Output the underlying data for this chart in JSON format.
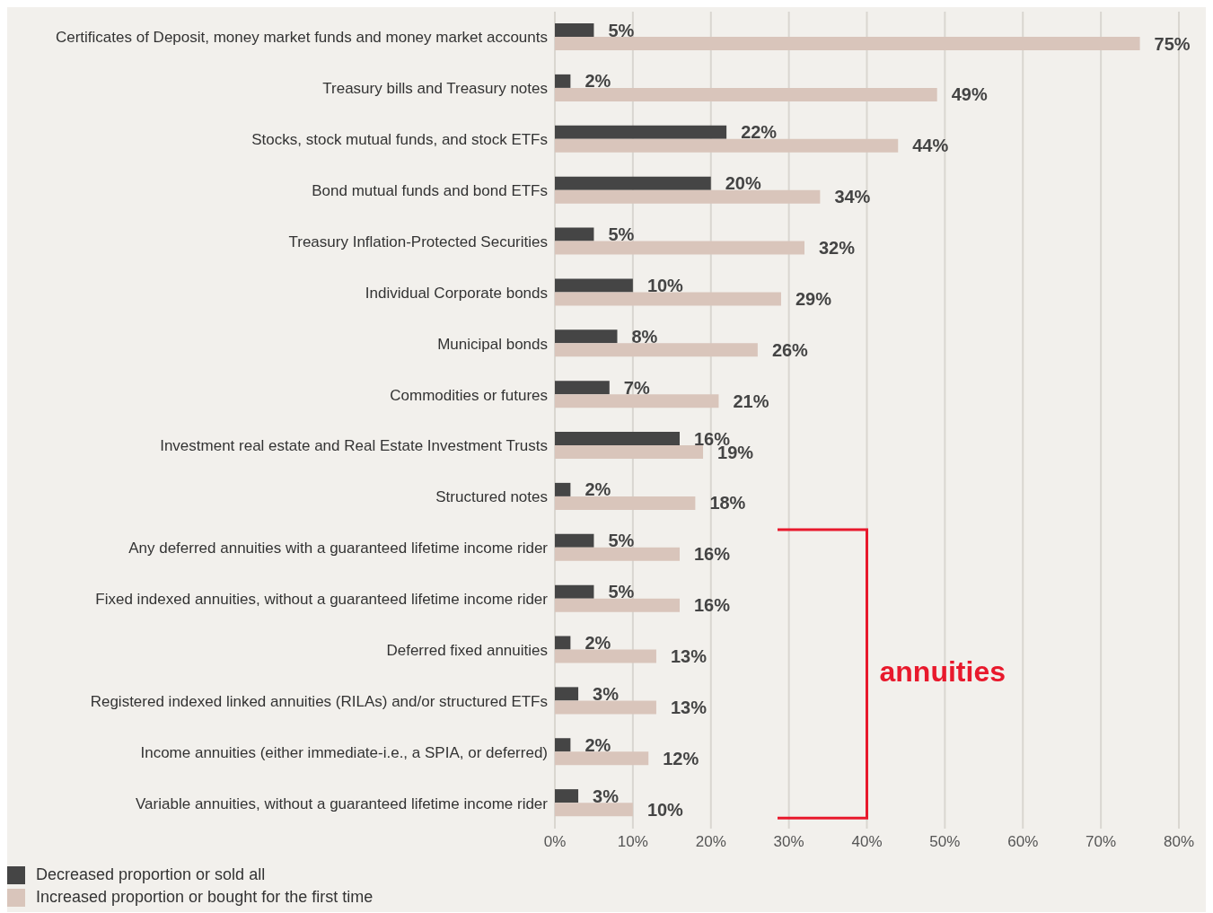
{
  "chart_data": {
    "type": "bar",
    "orientation": "horizontal",
    "categories": [
      "Certificates of Deposit, money market funds and money market accounts",
      "Treasury bills and Treasury notes",
      "Stocks, stock mutual funds, and stock ETFs",
      "Bond mutual funds and bond ETFs",
      "Treasury Inflation-Protected Securities",
      "Individual Corporate bonds",
      "Municipal bonds",
      "Commodities or futures",
      "Investment real estate and Real Estate Investment Trusts",
      "Structured notes",
      "Any deferred annuities with a guaranteed lifetime income rider",
      "Fixed indexed annuities, without a guaranteed lifetime income rider",
      "Deferred fixed annuities",
      "Registered indexed linked annuities (RILAs) and/or structured ETFs",
      "Income annuities (either immediate-i.e., a SPIA, or deferred)",
      "Variable annuities, without a guaranteed lifetime income rider"
    ],
    "series": [
      {
        "name": "Decreased proportion or sold all",
        "color": "#454545",
        "values": [
          5,
          2,
          22,
          20,
          5,
          10,
          8,
          7,
          16,
          2,
          5,
          5,
          2,
          3,
          2,
          3
        ],
        "value_labels": [
          "5%",
          "2%",
          "22%",
          "20%",
          "5%",
          "10%",
          "8%",
          "7%",
          "16%",
          "2%",
          "5%",
          "5%",
          "2%",
          "3%",
          "2%",
          "3%"
        ]
      },
      {
        "name": "Increased proportion or bought for the first time",
        "color": "#d9c5bb",
        "values": [
          75,
          49,
          44,
          34,
          32,
          29,
          26,
          21,
          19,
          18,
          16,
          16,
          13,
          13,
          12,
          10
        ],
        "value_labels": [
          "75%",
          "49%",
          "44%",
          "34%",
          "32%",
          "29%",
          "26%",
          "21%",
          "19%",
          "18%",
          "16%",
          "16%",
          "13%",
          "13%",
          "12%",
          "10%"
        ]
      }
    ],
    "xlim": [
      0,
      80
    ],
    "xticks": [
      {
        "value": 0,
        "label": "0%"
      },
      {
        "value": 10,
        "label": "10%"
      },
      {
        "value": 20,
        "label": "20%"
      },
      {
        "value": 30,
        "label": "30%"
      },
      {
        "value": 40,
        "label": "40%"
      },
      {
        "value": 50,
        "label": "50%"
      },
      {
        "value": 60,
        "label": "60%"
      },
      {
        "value": 70,
        "label": "70%"
      },
      {
        "value": 80,
        "label": "80%"
      }
    ],
    "grid": "x",
    "legend": "bottom left",
    "annotations": [
      "annuities"
    ]
  }
}
